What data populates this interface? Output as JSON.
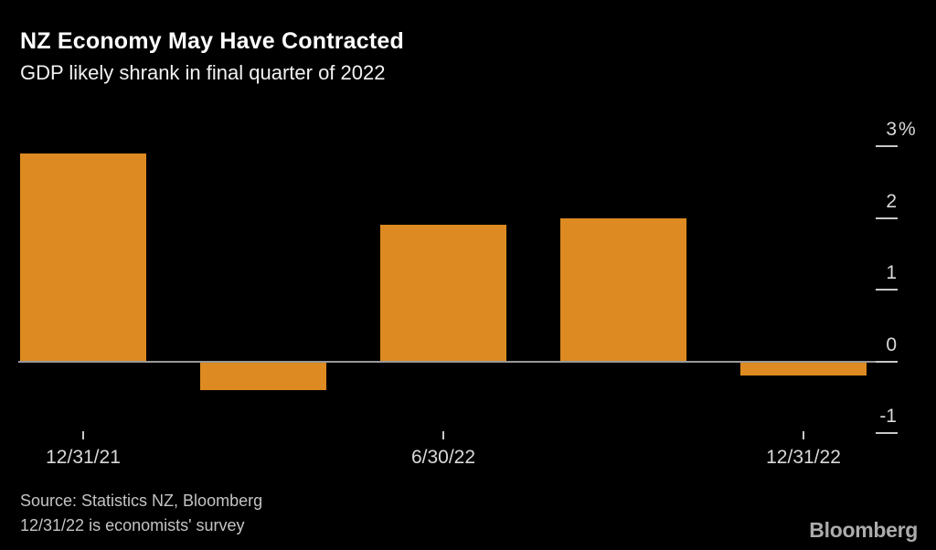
{
  "header": {
    "title": "NZ Economy May Have Contracted",
    "subtitle": "GDP likely shrank in final quarter of 2022"
  },
  "chart_data": {
    "type": "bar",
    "title": "NZ Economy May Have Contracted",
    "subtitle": "GDP likely shrank in final quarter of 2022",
    "unit": "%",
    "categories": [
      "12/31/21",
      "",
      "6/30/22",
      "",
      "12/31/22"
    ],
    "values": [
      2.9,
      -0.4,
      1.9,
      2.0,
      -0.2
    ],
    "bar_color": "#DC8A21",
    "grid": false,
    "legend": null,
    "ylim": [
      -1.4,
      3.3
    ],
    "y_axis": {
      "side": "right",
      "ticks": [
        {
          "value": 3,
          "num": "3",
          "suffix": "%"
        },
        {
          "value": 2,
          "num": "2",
          "suffix": ""
        },
        {
          "value": 1,
          "num": "1",
          "suffix": ""
        },
        {
          "value": 0,
          "num": "0",
          "suffix": ""
        },
        {
          "value": -1,
          "num": "-1",
          "suffix": ""
        }
      ]
    },
    "x_axis": {
      "ticks": [
        {
          "index": 0,
          "label": "12/31/21"
        },
        {
          "index": 2,
          "label": "6/30/22"
        },
        {
          "index": 4,
          "label": "12/31/22"
        }
      ]
    }
  },
  "footer": {
    "source_line1": "Source: Statistics NZ, Bloomberg",
    "source_line2": "12/31/22 is economists' survey",
    "brand": "Bloomberg"
  },
  "colors": {
    "background": "#000000",
    "bar": "#DC8A21",
    "zero_line": "#999999",
    "tick": "#C8C8C8",
    "axis_label": "#D9D9D9",
    "title": "#FFFFFF",
    "subtitle": "#F2F2F2",
    "source": "#C4C4C4",
    "brand": "#ACACAC"
  }
}
